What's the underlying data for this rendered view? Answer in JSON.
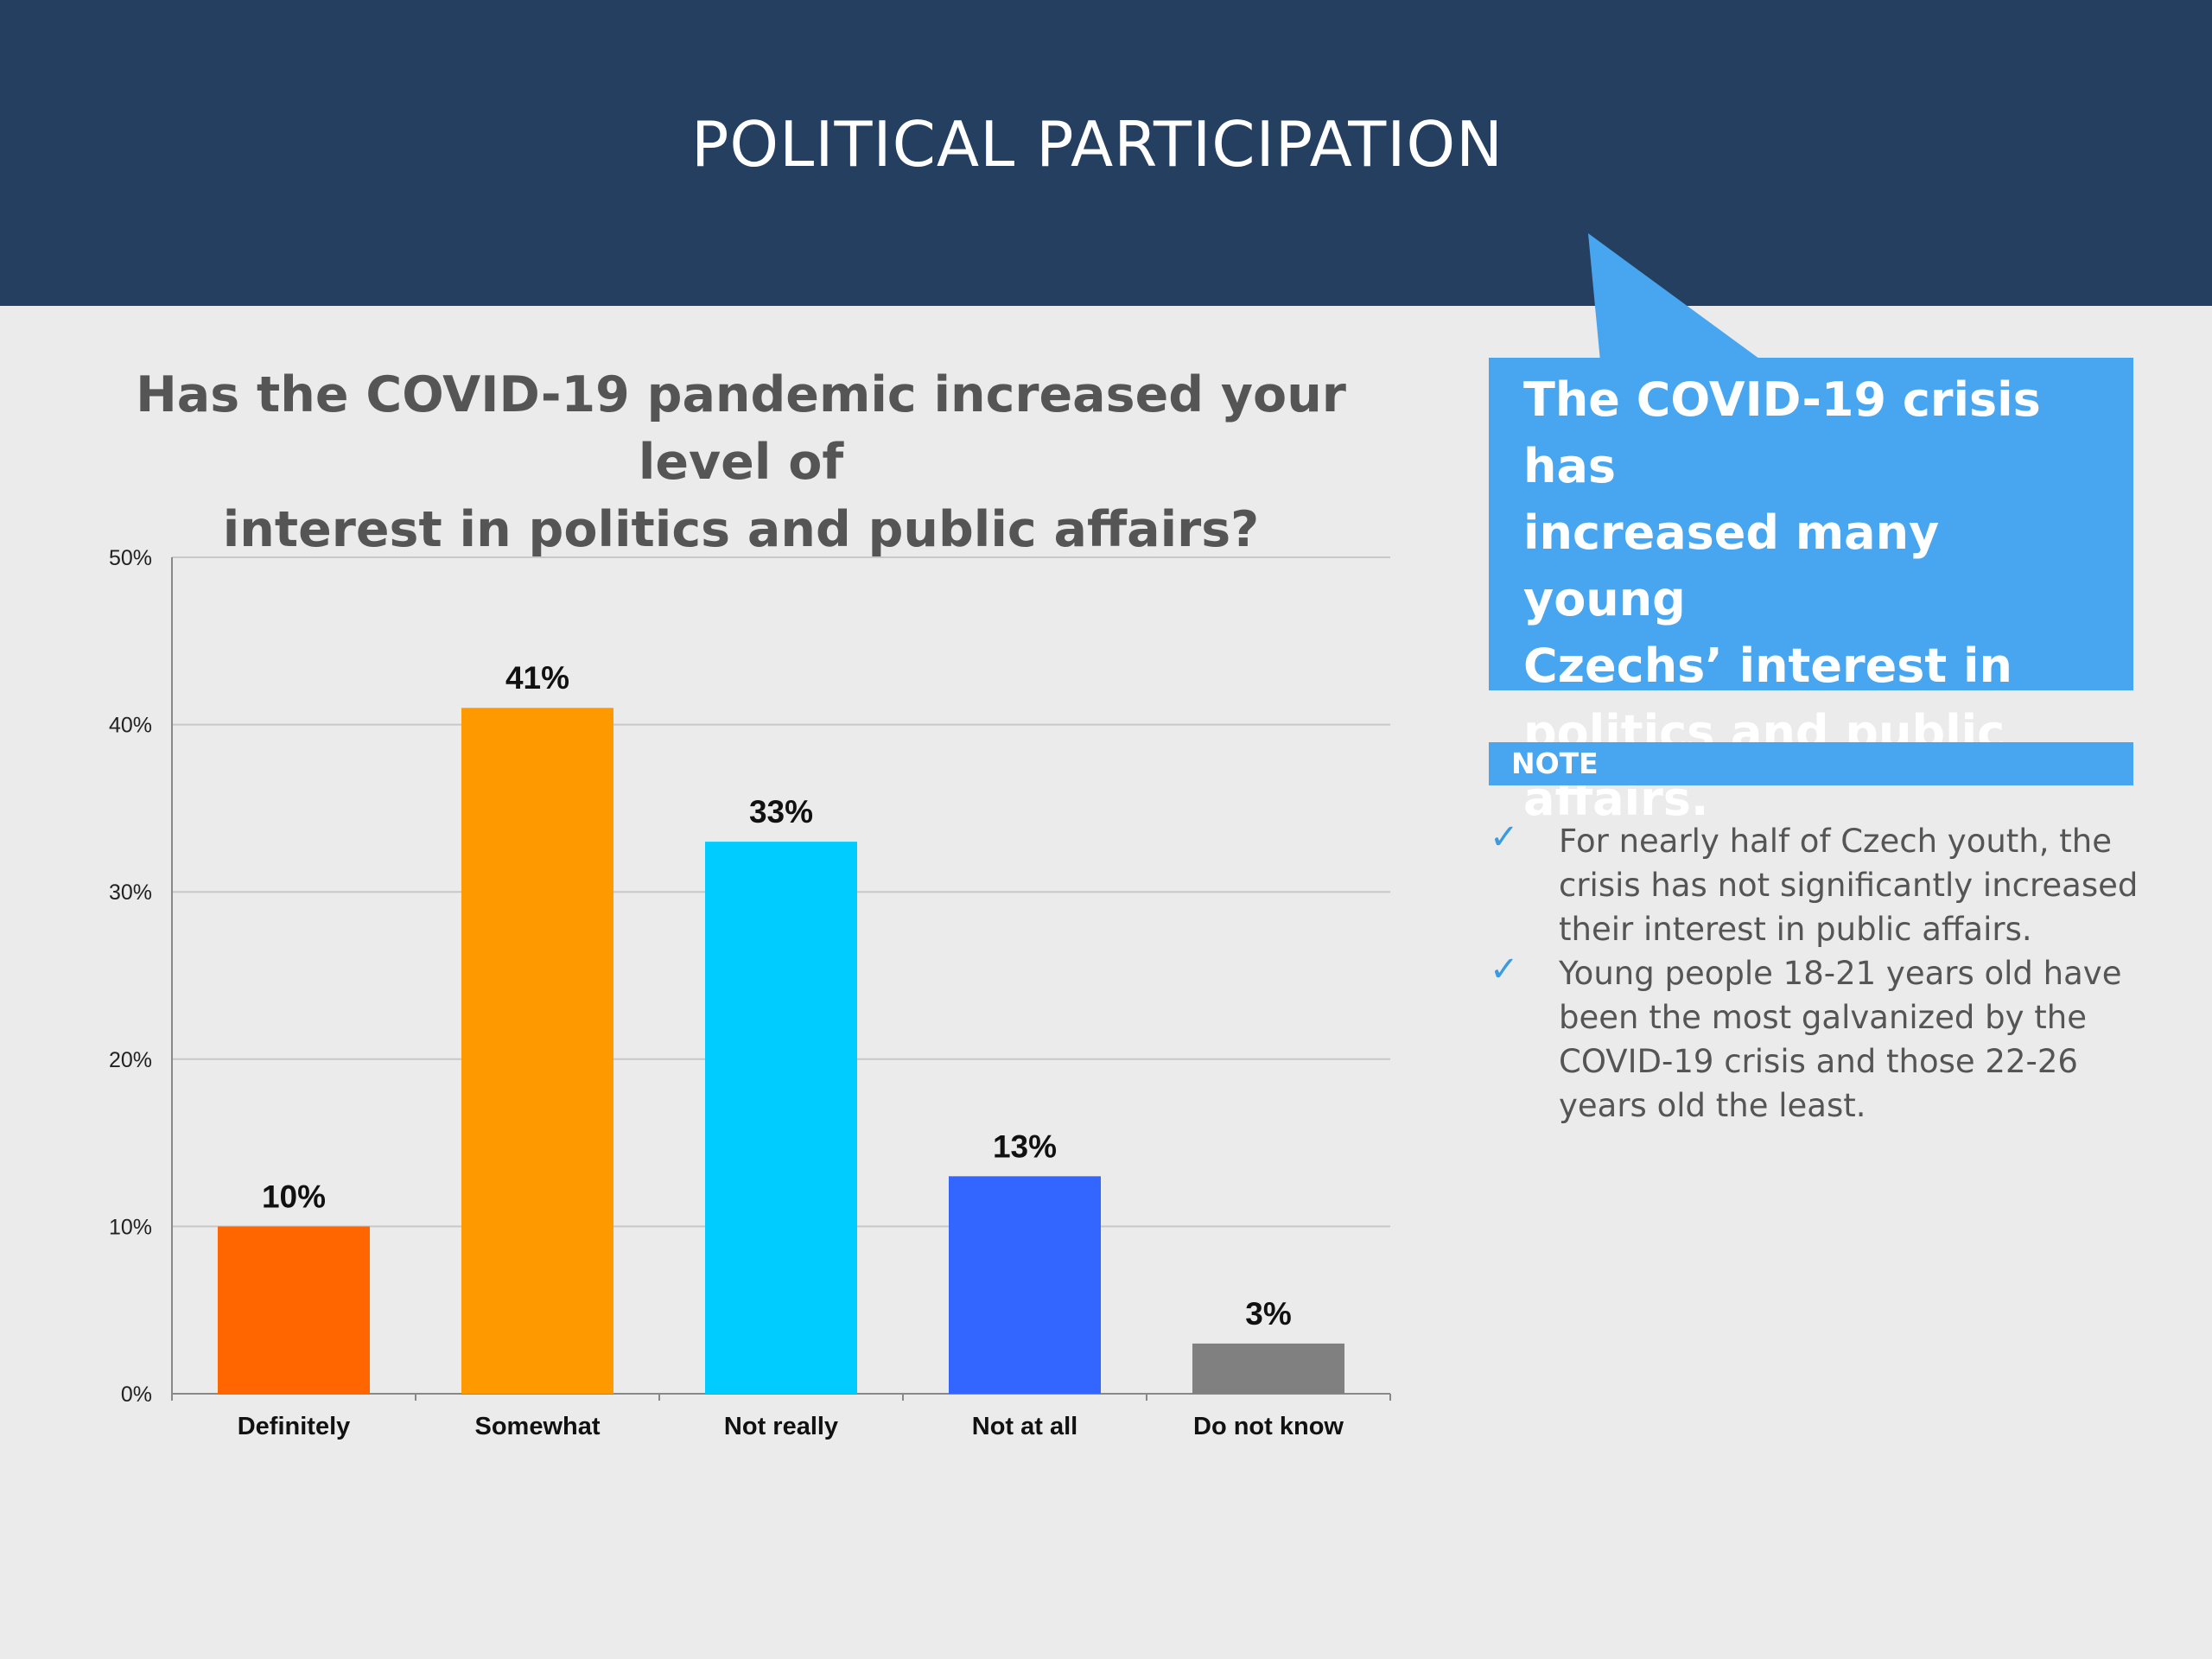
{
  "header": {
    "title": "POLITICAL PARTICIPATION",
    "background_color": "#243f60"
  },
  "question": {
    "line1": "Has the COVID-19 pandemic increased your level of",
    "line2": "interest in politics and public affairs?"
  },
  "callout": {
    "lines": [
      "The COVID-19 crisis has",
      "increased many young",
      "Czechs’ interest in",
      "politics and public",
      "affairs."
    ],
    "background_color": "#47a6ef"
  },
  "note": {
    "label": "NOTE",
    "items": [
      {
        "icon": "check-icon",
        "lines": [
          "For nearly half of Czech youth, the",
          "crisis has not significantly increased",
          "their interest in public affairs."
        ]
      },
      {
        "icon": "check-icon",
        "lines": [
          "Young people 18-21 years old have",
          "been the most galvanized by the",
          "COVID-19 crisis and those 22-26",
          "years old the least."
        ]
      }
    ]
  },
  "chart_data": {
    "type": "bar",
    "categories": [
      "Definitely",
      "Somewhat",
      "Not really",
      "Not at all",
      "Do not know"
    ],
    "values": [
      10,
      41,
      33,
      13,
      3
    ],
    "value_labels": [
      "10%",
      "41%",
      "33%",
      "13%",
      "3%"
    ],
    "colors": [
      "#ff6600",
      "#ff9900",
      "#00ccff",
      "#3366ff",
      "#808080"
    ],
    "yticks": [
      "0%",
      "10%",
      "20%",
      "30%",
      "40%",
      "50%"
    ],
    "ytick_values": [
      0,
      10,
      20,
      30,
      40,
      50
    ],
    "ylim": [
      0,
      50
    ],
    "grid": true,
    "legend": false
  }
}
